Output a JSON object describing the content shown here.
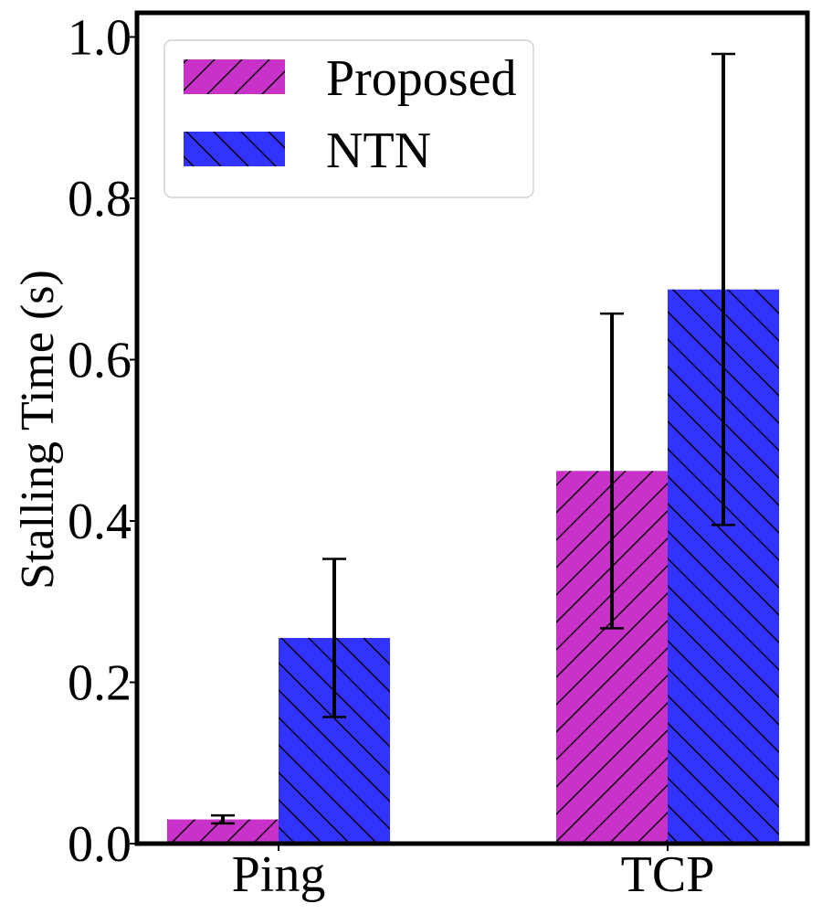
{
  "chart_data": {
    "type": "bar",
    "title": "",
    "xlabel": "",
    "ylabel": "Stalling Time (s)",
    "categories": [
      "Ping",
      "TCP"
    ],
    "series": [
      {
        "name": "Proposed",
        "color": "#c832c8",
        "hatch": "forward-diagonal",
        "values": [
          0.03,
          0.462
        ],
        "errors": [
          0.005,
          0.195
        ]
      },
      {
        "name": "NTN",
        "color": "#3333ff",
        "hatch": "back-diagonal",
        "values": [
          0.255,
          0.687
        ],
        "errors": [
          0.098,
          0.292
        ]
      }
    ],
    "ylim": [
      0.0,
      1.03
    ],
    "yticks": [
      "0.0",
      "0.2",
      "0.4",
      "0.6",
      "0.8",
      "1.0"
    ],
    "ytick_values": [
      0.0,
      0.2,
      0.4,
      0.6,
      0.8,
      1.0
    ],
    "legend_position": "upper-left",
    "grid": false
  }
}
